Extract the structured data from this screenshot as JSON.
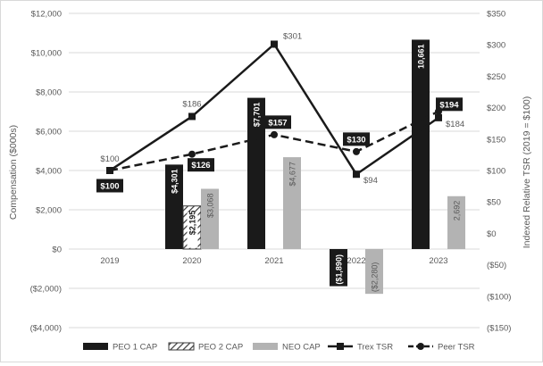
{
  "chart_data": {
    "type": "bar",
    "categories": [
      "2019",
      "2020",
      "2021",
      "2022",
      "2023"
    ],
    "series": [
      {
        "name": "PEO 1 CAP",
        "kind": "bar",
        "axis": "left",
        "fill": "#1a1a1a",
        "values": [
          null,
          4301,
          7701,
          -1890,
          10661
        ],
        "labels": [
          null,
          "$4,301",
          "$7,701",
          "($1,890)",
          "10,661"
        ]
      },
      {
        "name": "PEO 2 CAP",
        "kind": "bar",
        "axis": "left",
        "fill": "hatch",
        "values": [
          null,
          2195,
          null,
          null,
          null
        ],
        "labels": [
          null,
          "$2,195",
          null,
          null,
          null
        ]
      },
      {
        "name": "NEO CAP",
        "kind": "bar",
        "axis": "left",
        "fill": "#b3b3b3",
        "values": [
          null,
          3068,
          4677,
          -2280,
          2692
        ],
        "labels": [
          null,
          "$3,068",
          "$4,677",
          "($2,280)",
          "2,692"
        ]
      },
      {
        "name": "Trex TSR",
        "kind": "line",
        "axis": "right",
        "color": "#1a1a1a",
        "dash": "solid",
        "marker": "square",
        "values": [
          100,
          186,
          301,
          94,
          184
        ],
        "labels": [
          "$100",
          "$186",
          "$301",
          "$94",
          "$184"
        ]
      },
      {
        "name": "Peer TSR",
        "kind": "line",
        "axis": "right",
        "color": "#1a1a1a",
        "dash": "dashed",
        "marker": "circle",
        "values": [
          100,
          126,
          157,
          130,
          194
        ],
        "labels": [
          "$100",
          "$126",
          "$157",
          "$130",
          "$194"
        ]
      }
    ],
    "y_left": {
      "label": "Compensation ($000s)",
      "range": [
        -4000,
        12000
      ],
      "ticks": [
        12000,
        10000,
        8000,
        6000,
        4000,
        2000,
        0,
        -2000,
        -4000
      ],
      "tick_labels": [
        "$12,000",
        "$10,000",
        "$8,000",
        "$6,000",
        "$4,000",
        "$2,000",
        "$0",
        "($2,000)",
        "($4,000)"
      ]
    },
    "y_right": {
      "label": "Indexed Relative TSR (2019 = $100)",
      "range": [
        -150,
        350
      ],
      "ticks": [
        350,
        300,
        250,
        200,
        150,
        100,
        50,
        0,
        -50,
        -100,
        -150
      ],
      "tick_labels": [
        "$350",
        "$300",
        "$250",
        "$200",
        "$150",
        "$100",
        "$50",
        "$0",
        "($50)",
        "($100)",
        "($150)"
      ]
    },
    "grid": true,
    "legend": "bottom"
  }
}
